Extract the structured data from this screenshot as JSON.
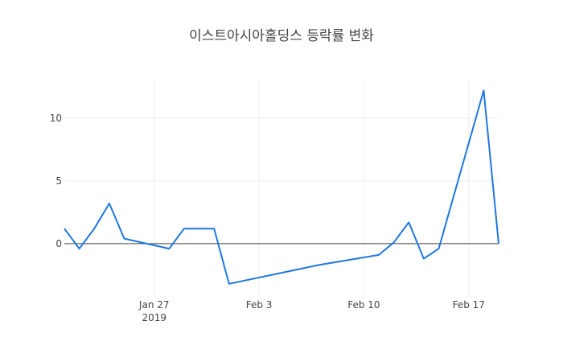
{
  "chart_data": {
    "type": "line",
    "title": "이스트아시아홀딩스 등락률 변화",
    "xlabel": "",
    "ylabel": "",
    "x_range": [
      "2019-01-21",
      "2019-02-19"
    ],
    "ylim": [
      -4.3,
      13.0
    ],
    "grid": true,
    "legend": "none",
    "x_ticks": [
      {
        "date": "2019-01-27",
        "label": "Jan 27",
        "sublabel": "2019"
      },
      {
        "date": "2019-02-03",
        "label": "Feb 3"
      },
      {
        "date": "2019-02-10",
        "label": "Feb 10"
      },
      {
        "date": "2019-02-17",
        "label": "Feb 17"
      }
    ],
    "y_ticks": [
      0,
      5,
      10
    ],
    "series": [
      {
        "color": "#1f77e0",
        "x": [
          "2019-01-21",
          "2019-01-22",
          "2019-01-23",
          "2019-01-24",
          "2019-01-25",
          "2019-01-28",
          "2019-01-29",
          "2019-01-30",
          "2019-01-31",
          "2019-02-01",
          "2019-02-07",
          "2019-02-11",
          "2019-02-12",
          "2019-02-13",
          "2019-02-14",
          "2019-02-15",
          "2019-02-18",
          "2019-02-19"
        ],
        "values": [
          1.2,
          -0.4,
          1.2,
          3.2,
          0.4,
          -0.4,
          1.2,
          1.2,
          1.2,
          -3.2,
          -1.7,
          -0.9,
          0.1,
          1.7,
          -1.2,
          -0.4,
          12.2,
          0.0
        ]
      }
    ]
  },
  "colors": {
    "line": "#1f77e0",
    "grid": "#eeeeee",
    "zeroline": "#444444"
  }
}
